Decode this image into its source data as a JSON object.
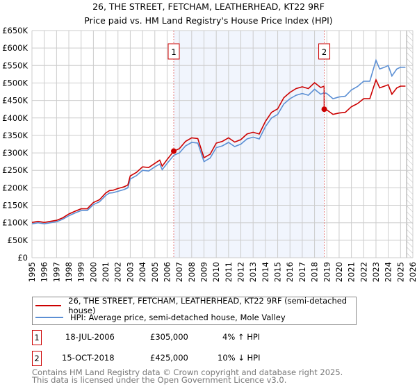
{
  "chart_data": {
    "type": "line",
    "title": "26, THE STREET, FETCHAM, LEATHERHEAD, KT22 9RF",
    "subtitle": "Price paid vs. HM Land Registry's House Price Index (HPI)",
    "xlim": [
      1995,
      2026
    ],
    "ylim": [
      0,
      650000
    ],
    "x_ticks": [
      "1995",
      "1996",
      "1997",
      "1998",
      "1999",
      "2000",
      "2001",
      "2002",
      "2003",
      "2004",
      "2005",
      "2006",
      "2007",
      "2008",
      "2009",
      "2010",
      "2011",
      "2012",
      "2013",
      "2014",
      "2015",
      "2016",
      "2017",
      "2018",
      "2019",
      "2020",
      "2021",
      "2022",
      "2023",
      "2024",
      "2025",
      "2026"
    ],
    "y_ticks": [
      "£0",
      "£50K",
      "£100K",
      "£150K",
      "£200K",
      "£250K",
      "£300K",
      "£350K",
      "£400K",
      "£450K",
      "£500K",
      "£550K",
      "£600K",
      "£650K"
    ],
    "grid": true,
    "shaded_range": [
      2006.54,
      2018.79
    ],
    "forecast_hatch_from": 2025.5,
    "series": [
      {
        "name": "26, THE STREET, FETCHAM, LEATHERHEAD, KT22 9RF (semi-detached house)",
        "color": "#cc0000",
        "x": [
          1995,
          1995.5,
          1996,
          1996.5,
          1997,
          1997.5,
          1998,
          1998.5,
          1999,
          1999.5,
          2000,
          2000.5,
          2001,
          2001.3,
          2001.6,
          2002,
          2002.5,
          2002.8,
          2003,
          2003.5,
          2004,
          2004.5,
          2005,
          2005.4,
          2005.6,
          2006,
          2006.54,
          2007,
          2007.5,
          2008,
          2008.5,
          2009,
          2009.5,
          2010,
          2010.5,
          2011,
          2011.5,
          2012,
          2012.5,
          2013,
          2013.5,
          2014,
          2014.5,
          2015,
          2015.5,
          2016,
          2016.5,
          2017,
          2017.5,
          2018,
          2018.5,
          2018.78,
          2018.79,
          2019,
          2019.5,
          2020,
          2020.5,
          2021,
          2021.5,
          2022,
          2022.5,
          2023,
          2023.3,
          2023.7,
          2024,
          2024.3,
          2024.7,
          2025,
          2025.4
        ],
        "y": [
          101000,
          104000,
          101000,
          104000,
          107000,
          114000,
          125000,
          133000,
          140000,
          140000,
          158000,
          166000,
          185000,
          192000,
          193000,
          198000,
          203000,
          208000,
          234000,
          244000,
          260000,
          258000,
          270000,
          279000,
          262000,
          281000,
          305000,
          312000,
          333000,
          343000,
          341000,
          286000,
          296000,
          328000,
          333000,
          343000,
          331000,
          338000,
          354000,
          359000,
          354000,
          390000,
          416000,
          426000,
          458000,
          473000,
          484000,
          489000,
          484000,
          501000,
          487000,
          491000,
          425000,
          423000,
          410000,
          414000,
          416000,
          432000,
          441000,
          455000,
          455000,
          509000,
          486000,
          491000,
          495000,
          468000,
          486000,
          491000,
          491000
        ]
      },
      {
        "name": "HPI: Average price, semi-detached house, Mole Valley",
        "color": "#5b8fd4",
        "x": [
          1995,
          1995.5,
          1996,
          1996.5,
          1997,
          1997.5,
          1998,
          1998.5,
          1999,
          1999.5,
          2000,
          2000.5,
          2001,
          2001.3,
          2001.6,
          2002,
          2002.5,
          2002.8,
          2003,
          2003.5,
          2004,
          2004.5,
          2005,
          2005.4,
          2005.6,
          2006,
          2006.54,
          2007,
          2007.5,
          2008,
          2008.5,
          2009,
          2009.5,
          2010,
          2010.5,
          2011,
          2011.5,
          2012,
          2012.5,
          2013,
          2013.5,
          2014,
          2014.5,
          2015,
          2015.5,
          2016,
          2016.5,
          2017,
          2017.5,
          2018,
          2018.5,
          2018.79,
          2019,
          2019.5,
          2020,
          2020.5,
          2021,
          2021.5,
          2022,
          2022.5,
          2023,
          2023.3,
          2023.7,
          2024,
          2024.3,
          2024.7,
          2025,
          2025.4
        ],
        "y": [
          97000,
          100000,
          97000,
          100000,
          103000,
          110000,
          120000,
          128000,
          135000,
          135000,
          152000,
          160000,
          178000,
          185000,
          186000,
          190000,
          195000,
          200000,
          225000,
          235000,
          250000,
          248000,
          260000,
          268000,
          252000,
          270000,
          293000,
          300000,
          320000,
          330000,
          328000,
          275000,
          285000,
          315000,
          320000,
          330000,
          318000,
          325000,
          340000,
          345000,
          340000,
          375000,
          400000,
          410000,
          440000,
          455000,
          465000,
          470000,
          465000,
          482000,
          468000,
          472000,
          470000,
          455000,
          460000,
          462000,
          480000,
          490000,
          505000,
          505000,
          565000,
          540000,
          545000,
          550000,
          520000,
          540000,
          545000,
          545000
        ]
      }
    ],
    "sales": [
      {
        "label": "1",
        "x": 2006.54,
        "price": 305000,
        "date": "18-JUL-2006",
        "price_text": "£305,000",
        "hpi_text": "4% ↑ HPI"
      },
      {
        "label": "2",
        "x": 2018.79,
        "price": 425000,
        "date": "15-OCT-2018",
        "price_text": "£425,000",
        "hpi_text": "10% ↓ HPI"
      }
    ]
  },
  "footer": {
    "line1": "Contains HM Land Registry data © Crown copyright and database right 2025.",
    "line2": "This data is licensed under the Open Government Licence v3.0."
  }
}
